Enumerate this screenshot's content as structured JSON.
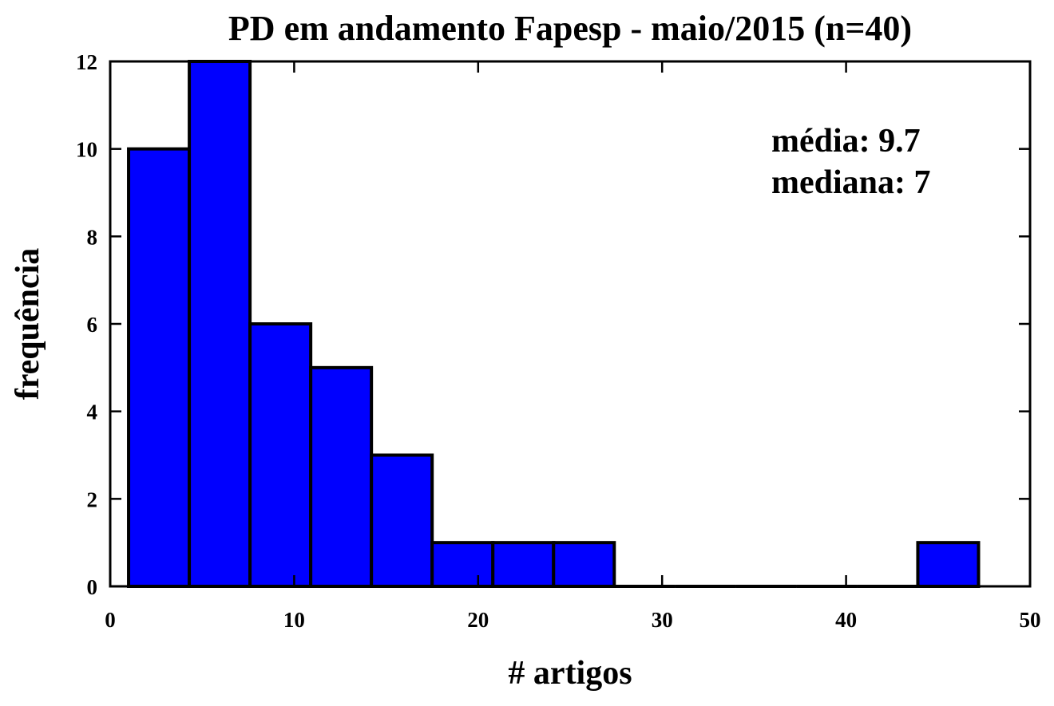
{
  "chart_data": {
    "type": "bar",
    "title": "PD em andamento Fapesp - maio/2015 (n=40)",
    "xlabel": "# artigos",
    "ylabel": "frequência",
    "xlim": [
      0,
      50
    ],
    "ylim": [
      0,
      12
    ],
    "x_ticks": [
      0,
      10,
      20,
      30,
      40,
      50
    ],
    "y_ticks": [
      0,
      2,
      4,
      6,
      8,
      10,
      12
    ],
    "grid": false,
    "bar_color": "#0000FF",
    "edge_color": "#000000",
    "bins": [
      {
        "x0": 1.0,
        "x1": 4.3,
        "count": 10
      },
      {
        "x0": 4.3,
        "x1": 7.6,
        "count": 12
      },
      {
        "x0": 7.6,
        "x1": 10.9,
        "count": 6
      },
      {
        "x0": 10.9,
        "x1": 14.2,
        "count": 5
      },
      {
        "x0": 14.2,
        "x1": 17.5,
        "count": 3
      },
      {
        "x0": 17.5,
        "x1": 20.8,
        "count": 1
      },
      {
        "x0": 20.8,
        "x1": 24.1,
        "count": 1
      },
      {
        "x0": 24.1,
        "x1": 27.4,
        "count": 1
      },
      {
        "x0": 27.4,
        "x1": 30.7,
        "count": 0
      },
      {
        "x0": 30.7,
        "x1": 34.0,
        "count": 0
      },
      {
        "x0": 34.0,
        "x1": 37.3,
        "count": 0
      },
      {
        "x0": 37.3,
        "x1": 40.6,
        "count": 0
      },
      {
        "x0": 40.6,
        "x1": 43.9,
        "count": 0
      },
      {
        "x0": 43.9,
        "x1": 47.2,
        "count": 1
      }
    ],
    "annotations": [
      "média: 9.7",
      "mediana: 7"
    ]
  }
}
